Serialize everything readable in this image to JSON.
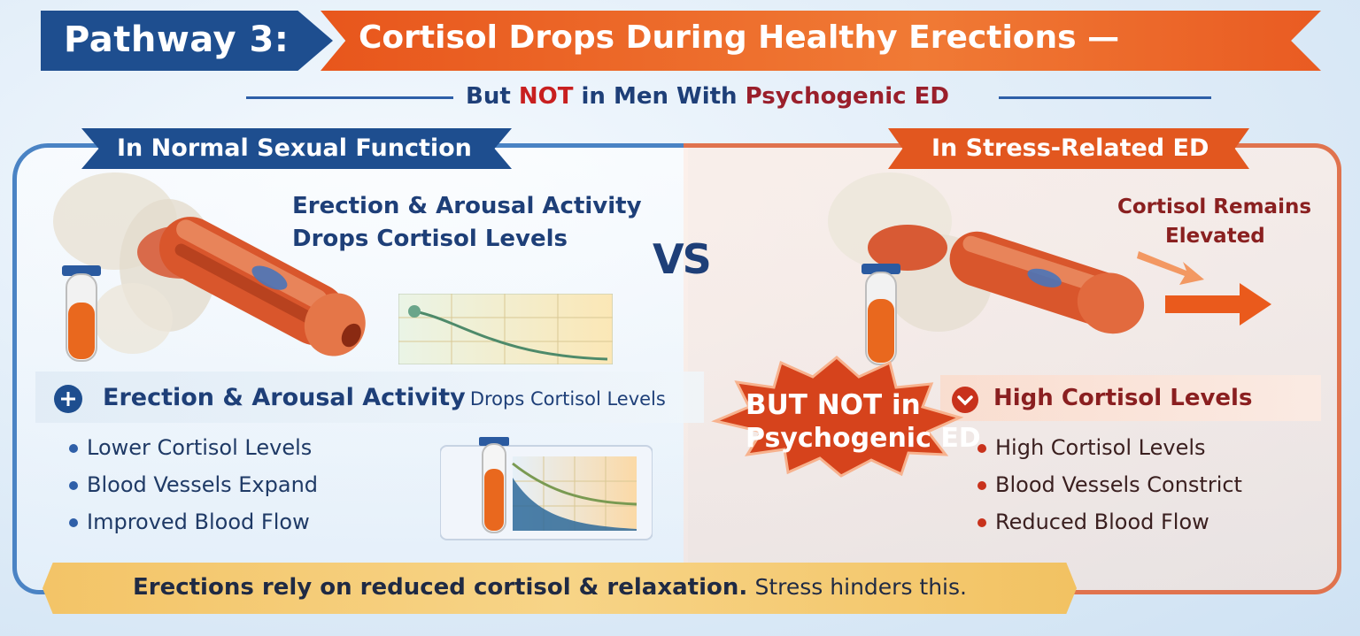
{
  "title": {
    "left": "Pathway 3:",
    "right": "Cortisol Drops During Healthy Erections —"
  },
  "subtitle": {
    "part1": "But",
    "part2": "NOT",
    "part3": "in Men With",
    "part4": "Psychogenic ED"
  },
  "vs": "VS",
  "left_panel": {
    "banner": "In Normal Sexual Function",
    "caption_line1": "Erection & Arousal Activity",
    "caption_line2": "Drops Cortisol Levels",
    "strip_bold": "Erection & Arousal Activity",
    "strip_rest": "Drops Cortisol Levels",
    "bullets": [
      "Lower Cortisol Levels",
      "Blood Vessels Expand",
      "Improved Blood Flow"
    ]
  },
  "right_panel": {
    "banner": "In Stress-Related ED",
    "caption_line1": "Cortisol Remains",
    "caption_line2": "Elevated",
    "strip": "High Cortisol Levels",
    "bullets": [
      "High Cortisol Levels",
      "Blood Vessels Constrict",
      "Reduced Blood Flow"
    ]
  },
  "burst": {
    "line1": "BUT NOT in",
    "line2": "Psychogenic ED"
  },
  "footer": {
    "bold": "Erections rely on reduced cortisol & relaxation.",
    "rest": "Stress hinders this."
  },
  "colors": {
    "navy": "#1e4e8f",
    "orange": "#e8561c",
    "dark_red": "#9a1f2b",
    "gold": "#f3c467"
  },
  "icons": [
    "plus-icon",
    "chevron-down-icon",
    "test-tube-icon",
    "arrow-right-icon"
  ]
}
